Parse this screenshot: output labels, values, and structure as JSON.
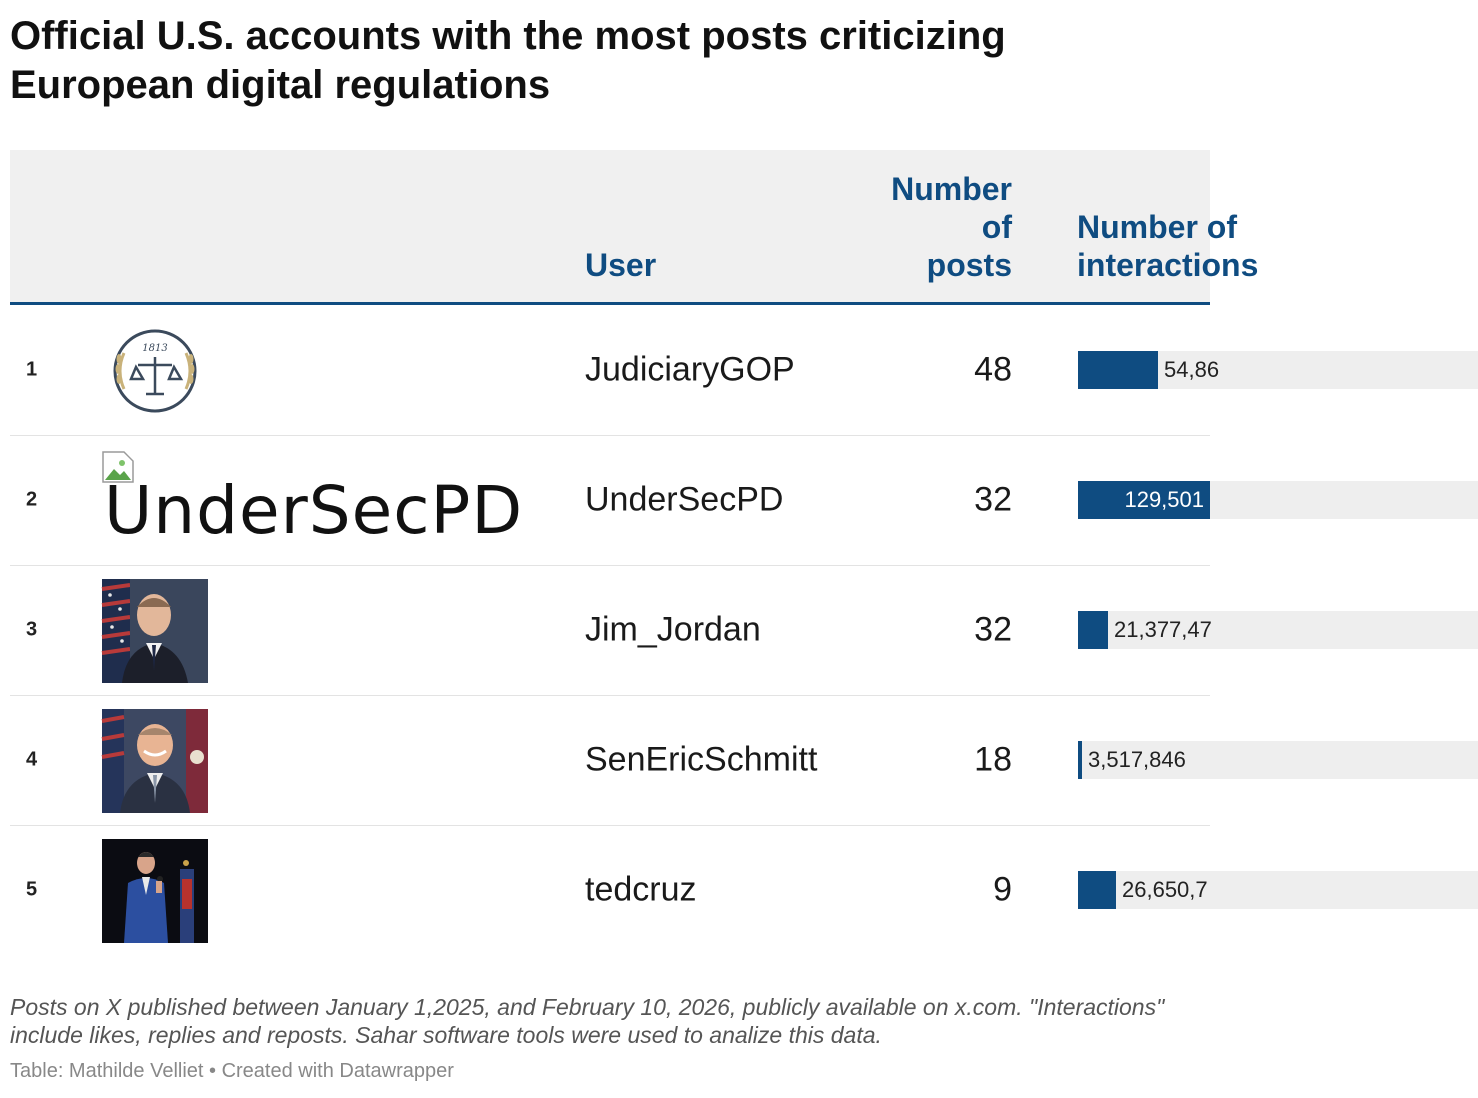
{
  "title": "Official U.S. accounts with the most posts criticizing European digital regulations",
  "columns": {
    "user": "User",
    "posts_lines": [
      "Number",
      "of",
      "posts"
    ],
    "interactions_lines": [
      "Number of",
      "interactions"
    ]
  },
  "rows": [
    {
      "rank": "1",
      "image_alt": "",
      "user": "JudiciaryGOP",
      "posts": "48",
      "interactions_label": "54,86"
    },
    {
      "rank": "2",
      "image_alt": "UnderSecPD",
      "user": "UnderSecPD",
      "posts": "32",
      "interactions_label": "129,501"
    },
    {
      "rank": "3",
      "image_alt": "",
      "user": "Jim_Jordan",
      "posts": "32",
      "interactions_label": "21,377,47"
    },
    {
      "rank": "4",
      "image_alt": "",
      "user": "SenEricSchmitt",
      "posts": "18",
      "interactions_label": "3,517,846"
    },
    {
      "rank": "5",
      "image_alt": "",
      "user": "tedcruz",
      "posts": "9",
      "interactions_label": "26,650,7"
    }
  ],
  "notes": "Posts on X published between January 1,2025, and February 10, 2026, publicly available on x.com. \"Interactions\" include likes, replies and reposts. Sahar software tools were used to analize this data.",
  "source": "Table: Mathilde Velliet • Created with Datawrapper",
  "logo_text": "1813",
  "colors": {
    "accent": "#0f4c81",
    "header_bg": "#f0f0f0",
    "bar_bg": "#eeeeee"
  },
  "chart_data": {
    "type": "table",
    "title": "Official U.S. accounts with the most posts criticizing European digital regulations",
    "columns": [
      "User",
      "Number of posts",
      "Number of interactions"
    ],
    "users": [
      "JudiciaryGOP",
      "UnderSecPD",
      "Jim_Jordan",
      "SenEricSchmitt",
      "tedcruz"
    ],
    "posts": [
      48,
      32,
      32,
      18,
      9
    ],
    "interaction_bar_fraction": [
      0.2,
      0.33,
      0.075,
      0.01,
      0.095
    ]
  }
}
